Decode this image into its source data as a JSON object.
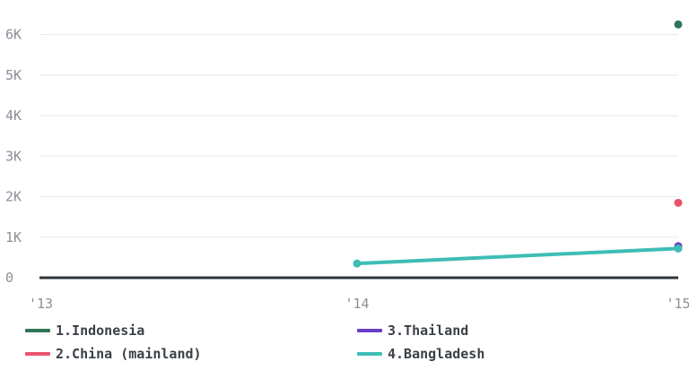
{
  "chart_data": {
    "type": "line",
    "x": [
      "'13",
      "'14",
      "'15"
    ],
    "ylim": [
      0,
      6500
    ],
    "y_ticks": [
      0,
      1000,
      2000,
      3000,
      4000,
      5000,
      6000
    ],
    "y_tick_labels": [
      "0",
      "1K",
      "2K",
      "3K",
      "4K",
      "5K",
      "6K"
    ],
    "grid": true,
    "legend_placement": "bottom",
    "series": [
      {
        "name": "1.Indonesia",
        "color": "#2e7657",
        "values": [
          null,
          null,
          6250
        ]
      },
      {
        "name": "2.China (mainland)",
        "color": "#e8546a",
        "values": [
          null,
          null,
          1850
        ]
      },
      {
        "name": "3.Thailand",
        "color": "#6b3fc4",
        "values": [
          null,
          null,
          780
        ]
      },
      {
        "name": "4.Bangladesh",
        "color": "#3dbdb6",
        "values": [
          null,
          350,
          720
        ]
      }
    ]
  }
}
